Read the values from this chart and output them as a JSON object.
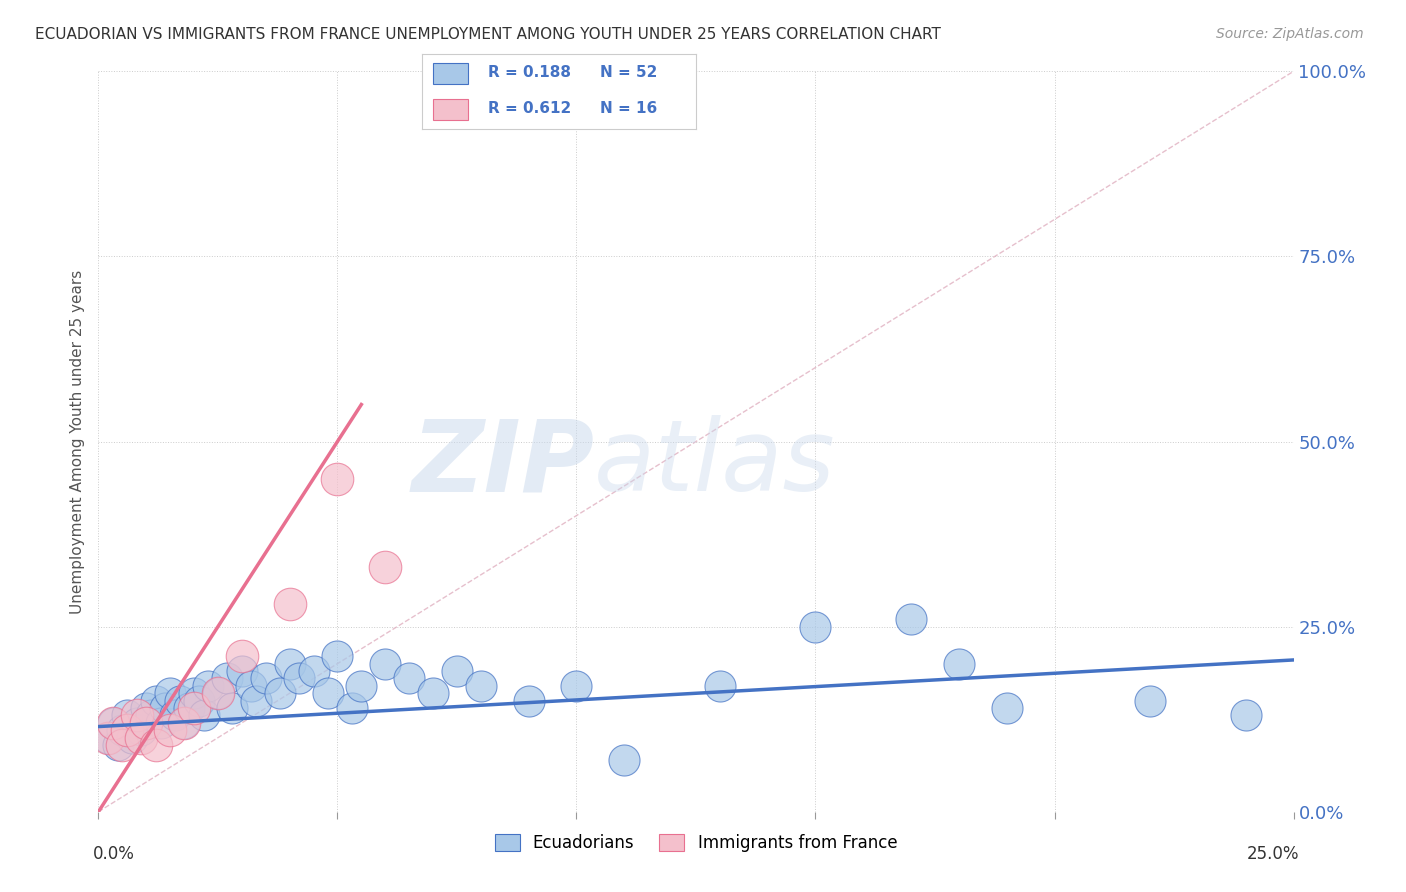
{
  "title": "ECUADORIAN VS IMMIGRANTS FROM FRANCE UNEMPLOYMENT AMONG YOUTH UNDER 25 YEARS CORRELATION CHART",
  "source": "Source: ZipAtlas.com",
  "legend_label1": "Ecuadorians",
  "legend_label2": "Immigrants from France",
  "R1": "0.188",
  "N1": "52",
  "R2": "0.612",
  "N2": "16",
  "blue_color": "#a8c8e8",
  "pink_color": "#f4c0cc",
  "trend_blue": "#4472c4",
  "trend_pink": "#e87090",
  "diag_color": "#e0b0c0",
  "text_blue": "#4472c4",
  "background": "#ffffff",
  "watermark_zip": "ZIP",
  "watermark_atlas": "atlas",
  "blue_scatter_x": [
    0.002,
    0.003,
    0.004,
    0.005,
    0.006,
    0.007,
    0.008,
    0.009,
    0.01,
    0.011,
    0.012,
    0.013,
    0.014,
    0.015,
    0.016,
    0.017,
    0.018,
    0.019,
    0.02,
    0.021,
    0.022,
    0.023,
    0.025,
    0.027,
    0.028,
    0.03,
    0.032,
    0.033,
    0.035,
    0.038,
    0.04,
    0.042,
    0.045,
    0.048,
    0.05,
    0.053,
    0.055,
    0.06,
    0.065,
    0.07,
    0.075,
    0.08,
    0.09,
    0.1,
    0.11,
    0.13,
    0.15,
    0.17,
    0.18,
    0.19,
    0.22,
    0.24
  ],
  "blue_scatter_y": [
    0.1,
    0.12,
    0.09,
    0.11,
    0.13,
    0.1,
    0.12,
    0.11,
    0.14,
    0.13,
    0.15,
    0.12,
    0.14,
    0.16,
    0.13,
    0.15,
    0.12,
    0.14,
    0.16,
    0.15,
    0.13,
    0.17,
    0.16,
    0.18,
    0.14,
    0.19,
    0.17,
    0.15,
    0.18,
    0.16,
    0.2,
    0.18,
    0.19,
    0.16,
    0.21,
    0.14,
    0.17,
    0.2,
    0.18,
    0.16,
    0.19,
    0.17,
    0.15,
    0.17,
    0.07,
    0.17,
    0.25,
    0.26,
    0.2,
    0.14,
    0.15,
    0.13
  ],
  "pink_scatter_x": [
    0.002,
    0.003,
    0.005,
    0.006,
    0.008,
    0.009,
    0.01,
    0.012,
    0.015,
    0.018,
    0.02,
    0.025,
    0.03,
    0.04,
    0.05,
    0.06
  ],
  "pink_scatter_y": [
    0.1,
    0.12,
    0.09,
    0.11,
    0.13,
    0.1,
    0.12,
    0.09,
    0.11,
    0.12,
    0.14,
    0.16,
    0.21,
    0.28,
    0.45,
    0.33
  ],
  "xmin": 0.0,
  "xmax": 0.25,
  "ymin": 0.0,
  "ymax": 1.0,
  "yticks": [
    0.0,
    0.25,
    0.5,
    0.75,
    1.0
  ],
  "xticks": [
    0.0,
    0.05,
    0.1,
    0.15,
    0.2,
    0.25
  ]
}
